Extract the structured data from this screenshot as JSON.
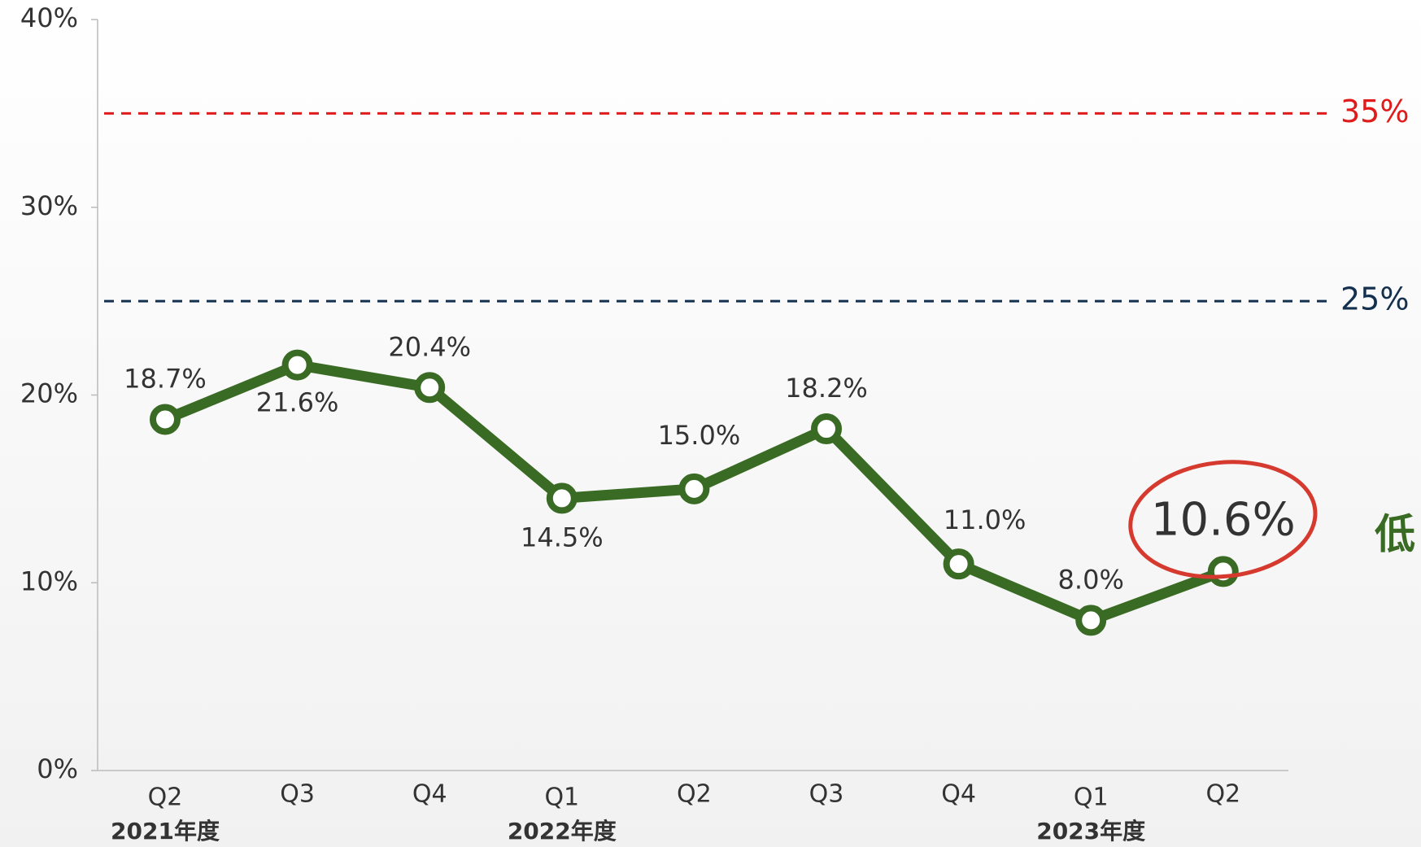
{
  "chart_data": {
    "type": "line",
    "categories": [
      "Q2",
      "Q3",
      "Q4",
      "Q1",
      "Q2",
      "Q3",
      "Q4",
      "Q1",
      "Q2"
    ],
    "category_groups": [
      "2021年度",
      null,
      null,
      "2022年度",
      null,
      null,
      null,
      "2023年度",
      null
    ],
    "series": [
      {
        "color": "#3a6b24",
        "values": [
          18.7,
          21.6,
          20.4,
          14.5,
          15.0,
          18.2,
          11.0,
          8.0,
          10.6
        ],
        "value_labels": [
          "18.7%",
          "21.6%",
          "20.4%",
          "14.5%",
          "15.0%",
          "18.2%",
          "11.0%",
          "8.0%",
          "10.6%"
        ]
      }
    ],
    "ylim": [
      0,
      40
    ],
    "yticks": [
      {
        "value": 0,
        "label": "0%"
      },
      {
        "value": 10,
        "label": "10%"
      },
      {
        "value": 20,
        "label": "20%"
      },
      {
        "value": 30,
        "label": "30%"
      },
      {
        "value": 40,
        "label": "40%"
      }
    ],
    "reference_lines": [
      {
        "value": 35,
        "label": "35%",
        "color": "#e01b1b"
      },
      {
        "value": 25,
        "label": "25%",
        "color": "#14304f"
      }
    ],
    "annotation": "低"
  }
}
